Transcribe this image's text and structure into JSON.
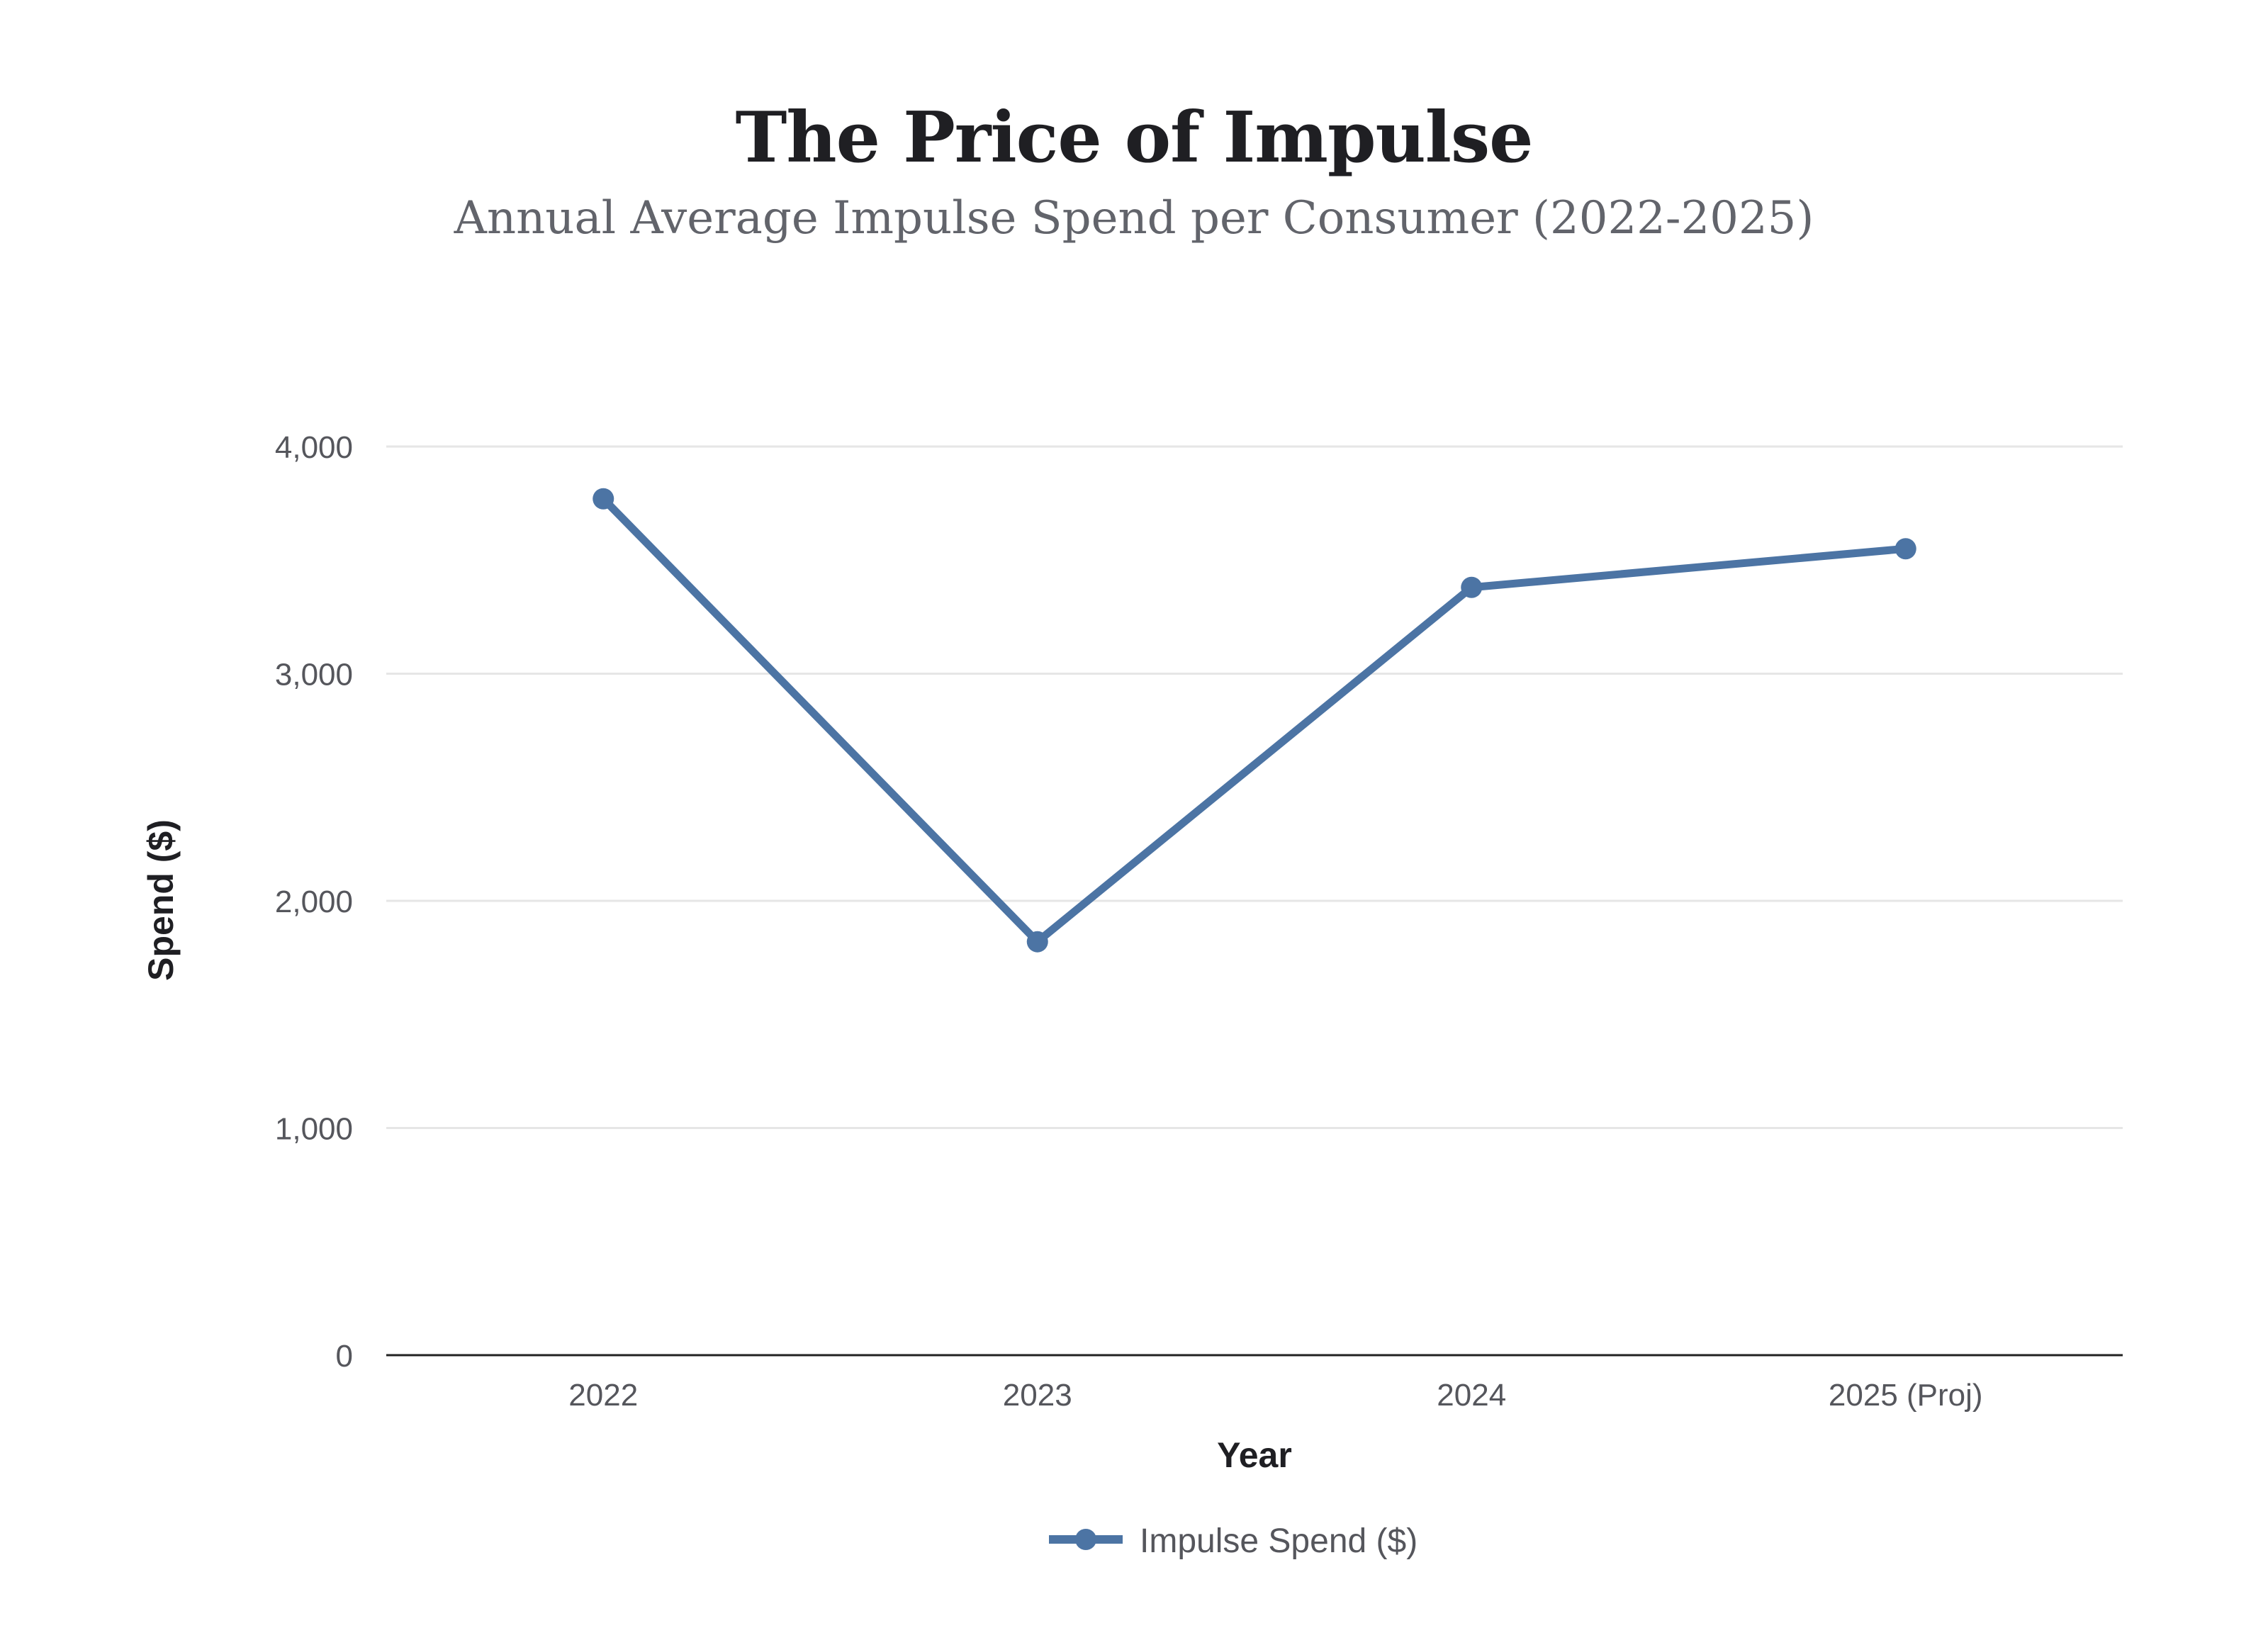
{
  "chart_data": {
    "type": "line",
    "title": "The Price of Impulse",
    "subtitle": "Annual Average Impulse Spend per Consumer (2022-2025)",
    "xlabel": "Year",
    "ylabel": "Spend ($)",
    "categories": [
      "2022",
      "2023",
      "2024",
      "2025 (Proj)"
    ],
    "series": [
      {
        "name": "Impulse Spend ($)",
        "values": [
          3770,
          1820,
          3380,
          3550
        ],
        "color": "#4c74a4"
      }
    ],
    "ylim": [
      0,
      4000
    ],
    "yticks": [
      0,
      1000,
      2000,
      3000,
      4000
    ],
    "ytick_labels": [
      "0",
      "1,000",
      "2,000",
      "3,000",
      "4,000"
    ],
    "grid": true,
    "legend": "bottom-center"
  },
  "colors": {
    "title": "#1f1f23",
    "subtitle": "#62646b",
    "tick_text": "#55565c",
    "grid": "#e6e6e6",
    "axis": "#222222"
  }
}
